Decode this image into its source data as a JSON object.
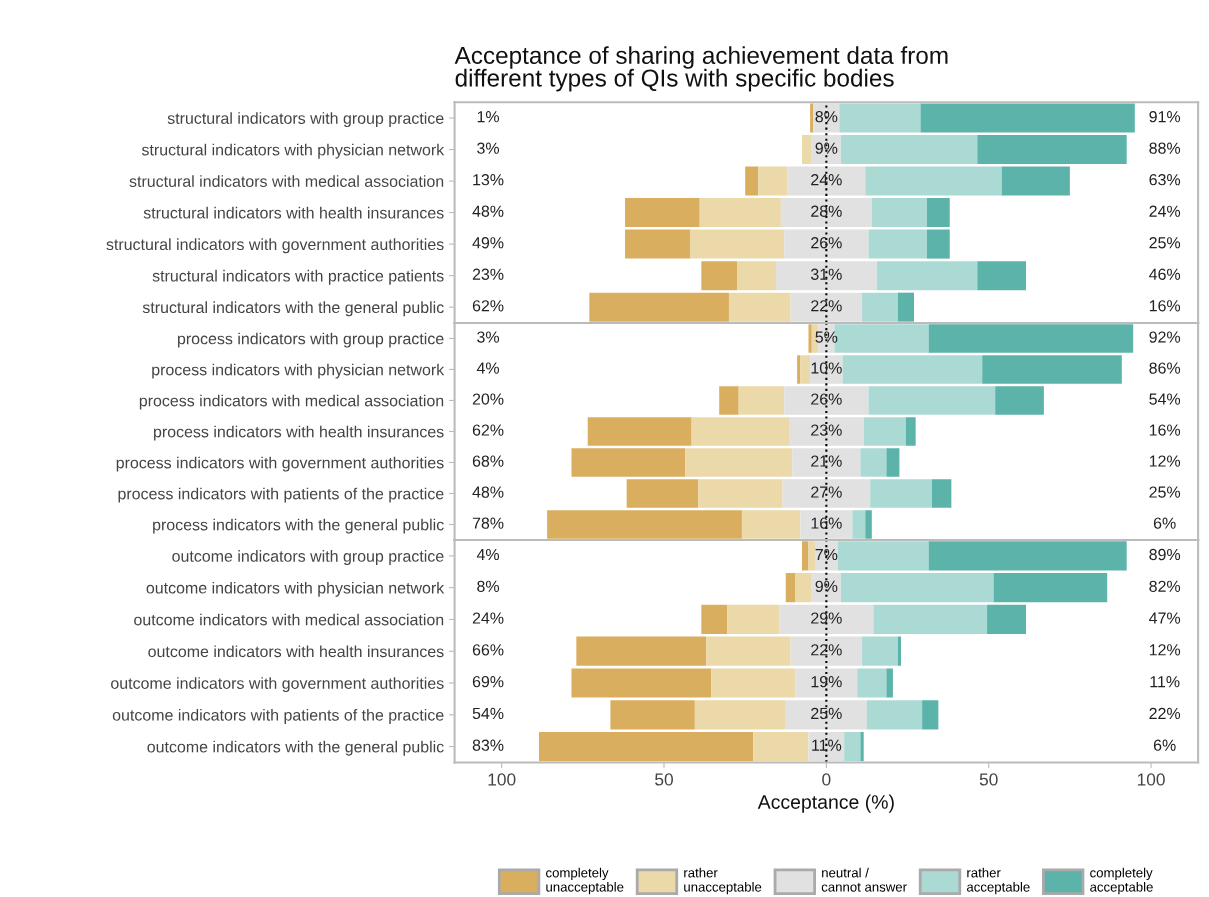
{
  "chart_data": [
    {
      "type": "bar",
      "orientation": "horizontal",
      "title": "Acceptance of sharing achievement data from\ndifferent types of QIs with specific bodies",
      "categories": [
        "structural indicators with group practice",
        "structural indicators with physician network",
        "structural indicators with medical association",
        "structural indicators with health insurances",
        "structural indicators with government authorities",
        "structural indicators with practice patients",
        "structural indicators with the general public"
      ],
      "series": [
        {
          "color": "#d9ae5f",
          "base": [
            -5,
            null,
            -25,
            -62,
            -62,
            -38.5,
            -73
          ],
          "values": [
            1,
            null,
            4,
            23,
            20,
            11,
            43
          ]
        },
        {
          "color": "#ecd9a9",
          "base": [
            null,
            -7.5,
            -21,
            -39,
            -42,
            -27.5,
            -30
          ],
          "values": [
            null,
            3,
            9,
            25,
            29,
            12,
            19
          ]
        },
        {
          "color": "#e1e1e1",
          "base": [
            -4,
            -4.5,
            -12,
            -14,
            -13,
            -15.5,
            -11
          ],
          "values": [
            8,
            9,
            24,
            28,
            26,
            31,
            22
          ],
          "value_labels": [
            "8%",
            "9%",
            "24%",
            "28%",
            "26%",
            "31%",
            "22%"
          ]
        },
        {
          "color": "#abdad5",
          "base": [
            4,
            4.5,
            12,
            14,
            13,
            15.5,
            11
          ],
          "values": [
            25,
            42,
            42,
            17,
            18,
            31,
            11
          ]
        },
        {
          "color": "#5bb3a9",
          "base": [
            29,
            46.5,
            54,
            31,
            31,
            46.5,
            22
          ],
          "values": [
            66,
            46,
            21,
            7,
            7,
            15,
            5
          ]
        }
      ],
      "annotations": [
        "1%",
        "3%",
        "13%",
        "48%",
        "49%",
        "23%",
        "62%",
        "91%",
        "88%",
        "63%",
        "24%",
        "25%",
        "46%",
        "16%"
      ],
      "xlim": [
        -114.5,
        114.5
      ],
      "ref_lines": [
        {
          "axis": "x",
          "value": 0,
          "color": "#000000",
          "line_style": "dotted"
        }
      ],
      "tick_labels": "y"
    },
    {
      "type": "bar",
      "orientation": "horizontal",
      "categories": [
        "process indicators with group practice",
        "process indicators with physician network",
        "process indicators with medical association",
        "process indicators with health insurances",
        "process indicators with government authorities",
        "process indicators with patients of the practice",
        "process indicators with the general public"
      ],
      "series": [
        {
          "color": "#d9ae5f",
          "base": [
            -5.5,
            -9,
            -33,
            -73.5,
            -78.5,
            -61.5,
            -86
          ],
          "values": [
            1,
            1,
            6,
            32,
            35,
            22,
            60
          ]
        },
        {
          "color": "#ecd9a9",
          "base": [
            -4.5,
            -8,
            -27,
            -41.5,
            -43.5,
            -39.5,
            -26
          ],
          "values": [
            2,
            3,
            14,
            30,
            33,
            26,
            18
          ]
        },
        {
          "color": "#e1e1e1",
          "base": [
            -2.5,
            -5,
            -13,
            -11.5,
            -10.5,
            -13.5,
            -8
          ],
          "values": [
            5,
            10,
            26,
            23,
            21,
            27,
            16
          ],
          "value_labels": [
            "5%",
            "10%",
            "26%",
            "23%",
            "21%",
            "27%",
            "16%"
          ]
        },
        {
          "color": "#abdad5",
          "base": [
            2.5,
            5,
            13,
            11.5,
            10.5,
            13.5,
            8
          ],
          "values": [
            29,
            43,
            39,
            13,
            8,
            19,
            4
          ]
        },
        {
          "color": "#5bb3a9",
          "base": [
            31.5,
            48,
            52,
            24.5,
            18.5,
            32.5,
            12
          ],
          "values": [
            63,
            43,
            15,
            3,
            4,
            6,
            2
          ]
        }
      ],
      "annotations": [
        "3%",
        "4%",
        "20%",
        "62%",
        "68%",
        "48%",
        "78%",
        "92%",
        "86%",
        "54%",
        "16%",
        "12%",
        "25%",
        "6%"
      ],
      "xlim": [
        -114.5,
        114.5
      ],
      "ref_lines": [
        {
          "axis": "x",
          "value": 0,
          "color": "#000000",
          "line_style": "dotted"
        }
      ],
      "tick_labels": "y"
    },
    {
      "type": "bar",
      "orientation": "horizontal",
      "xlabel": "Acceptance (%)",
      "legend": "bottom",
      "categories": [
        "outcome indicators with group practice",
        "outcome indicators with physician network",
        "outcome indicators with medical association",
        "outcome indicators with health insurances",
        "outcome indicators with government authorities",
        "outcome indicators with patients of the practice",
        "outcome indicators with the general public"
      ],
      "series": [
        {
          "name": "completely\nunacceptable",
          "color": "#d9ae5f",
          "base": [
            -7.5,
            -12.5,
            -38.5,
            -77,
            -78.5,
            -66.5,
            -88.5
          ],
          "values": [
            2,
            3,
            8,
            40,
            43,
            26,
            66
          ]
        },
        {
          "name": "rather\nunacceptable",
          "color": "#ecd9a9",
          "base": [
            -5.5,
            -9.5,
            -30.5,
            -37,
            -35.5,
            -40.5,
            -22.5
          ],
          "values": [
            2,
            5,
            16,
            26,
            26,
            28,
            17
          ]
        },
        {
          "name": "neutral /\ncannot answer",
          "color": "#e1e1e1",
          "base": [
            -3.5,
            -4.5,
            -14.5,
            -11,
            -9.5,
            -12.5,
            -5.5
          ],
          "values": [
            7,
            9,
            29,
            22,
            19,
            25,
            11
          ],
          "value_labels": [
            "7%",
            "9%",
            "29%",
            "22%",
            "19%",
            "25%",
            "11%"
          ]
        },
        {
          "name": "rather\nacceptable",
          "color": "#abdad5",
          "base": [
            3.5,
            4.5,
            14.5,
            11,
            9.5,
            12.5,
            5.5
          ],
          "values": [
            28,
            47,
            35,
            11,
            9,
            17,
            5
          ]
        },
        {
          "name": "completely\nacceptable",
          "color": "#5bb3a9",
          "base": [
            31.5,
            51.5,
            49.5,
            22,
            18.5,
            29.5,
            10.5
          ],
          "values": [
            61,
            35,
            12,
            1,
            2,
            5,
            1
          ]
        }
      ],
      "annotations": [
        "4%",
        "8%",
        "24%",
        "66%",
        "69%",
        "54%",
        "83%",
        "89%",
        "82%",
        "47%",
        "12%",
        "11%",
        "22%",
        "6%"
      ],
      "xlim": [
        -114.5,
        114.5
      ],
      "xticks": [
        {
          "value": -100,
          "label": "100"
        },
        {
          "value": -50,
          "label": "50"
        },
        0,
        50,
        100
      ],
      "ref_lines": [
        {
          "axis": "x",
          "value": 0,
          "color": "#000000",
          "line_style": "dotted"
        }
      ]
    }
  ]
}
